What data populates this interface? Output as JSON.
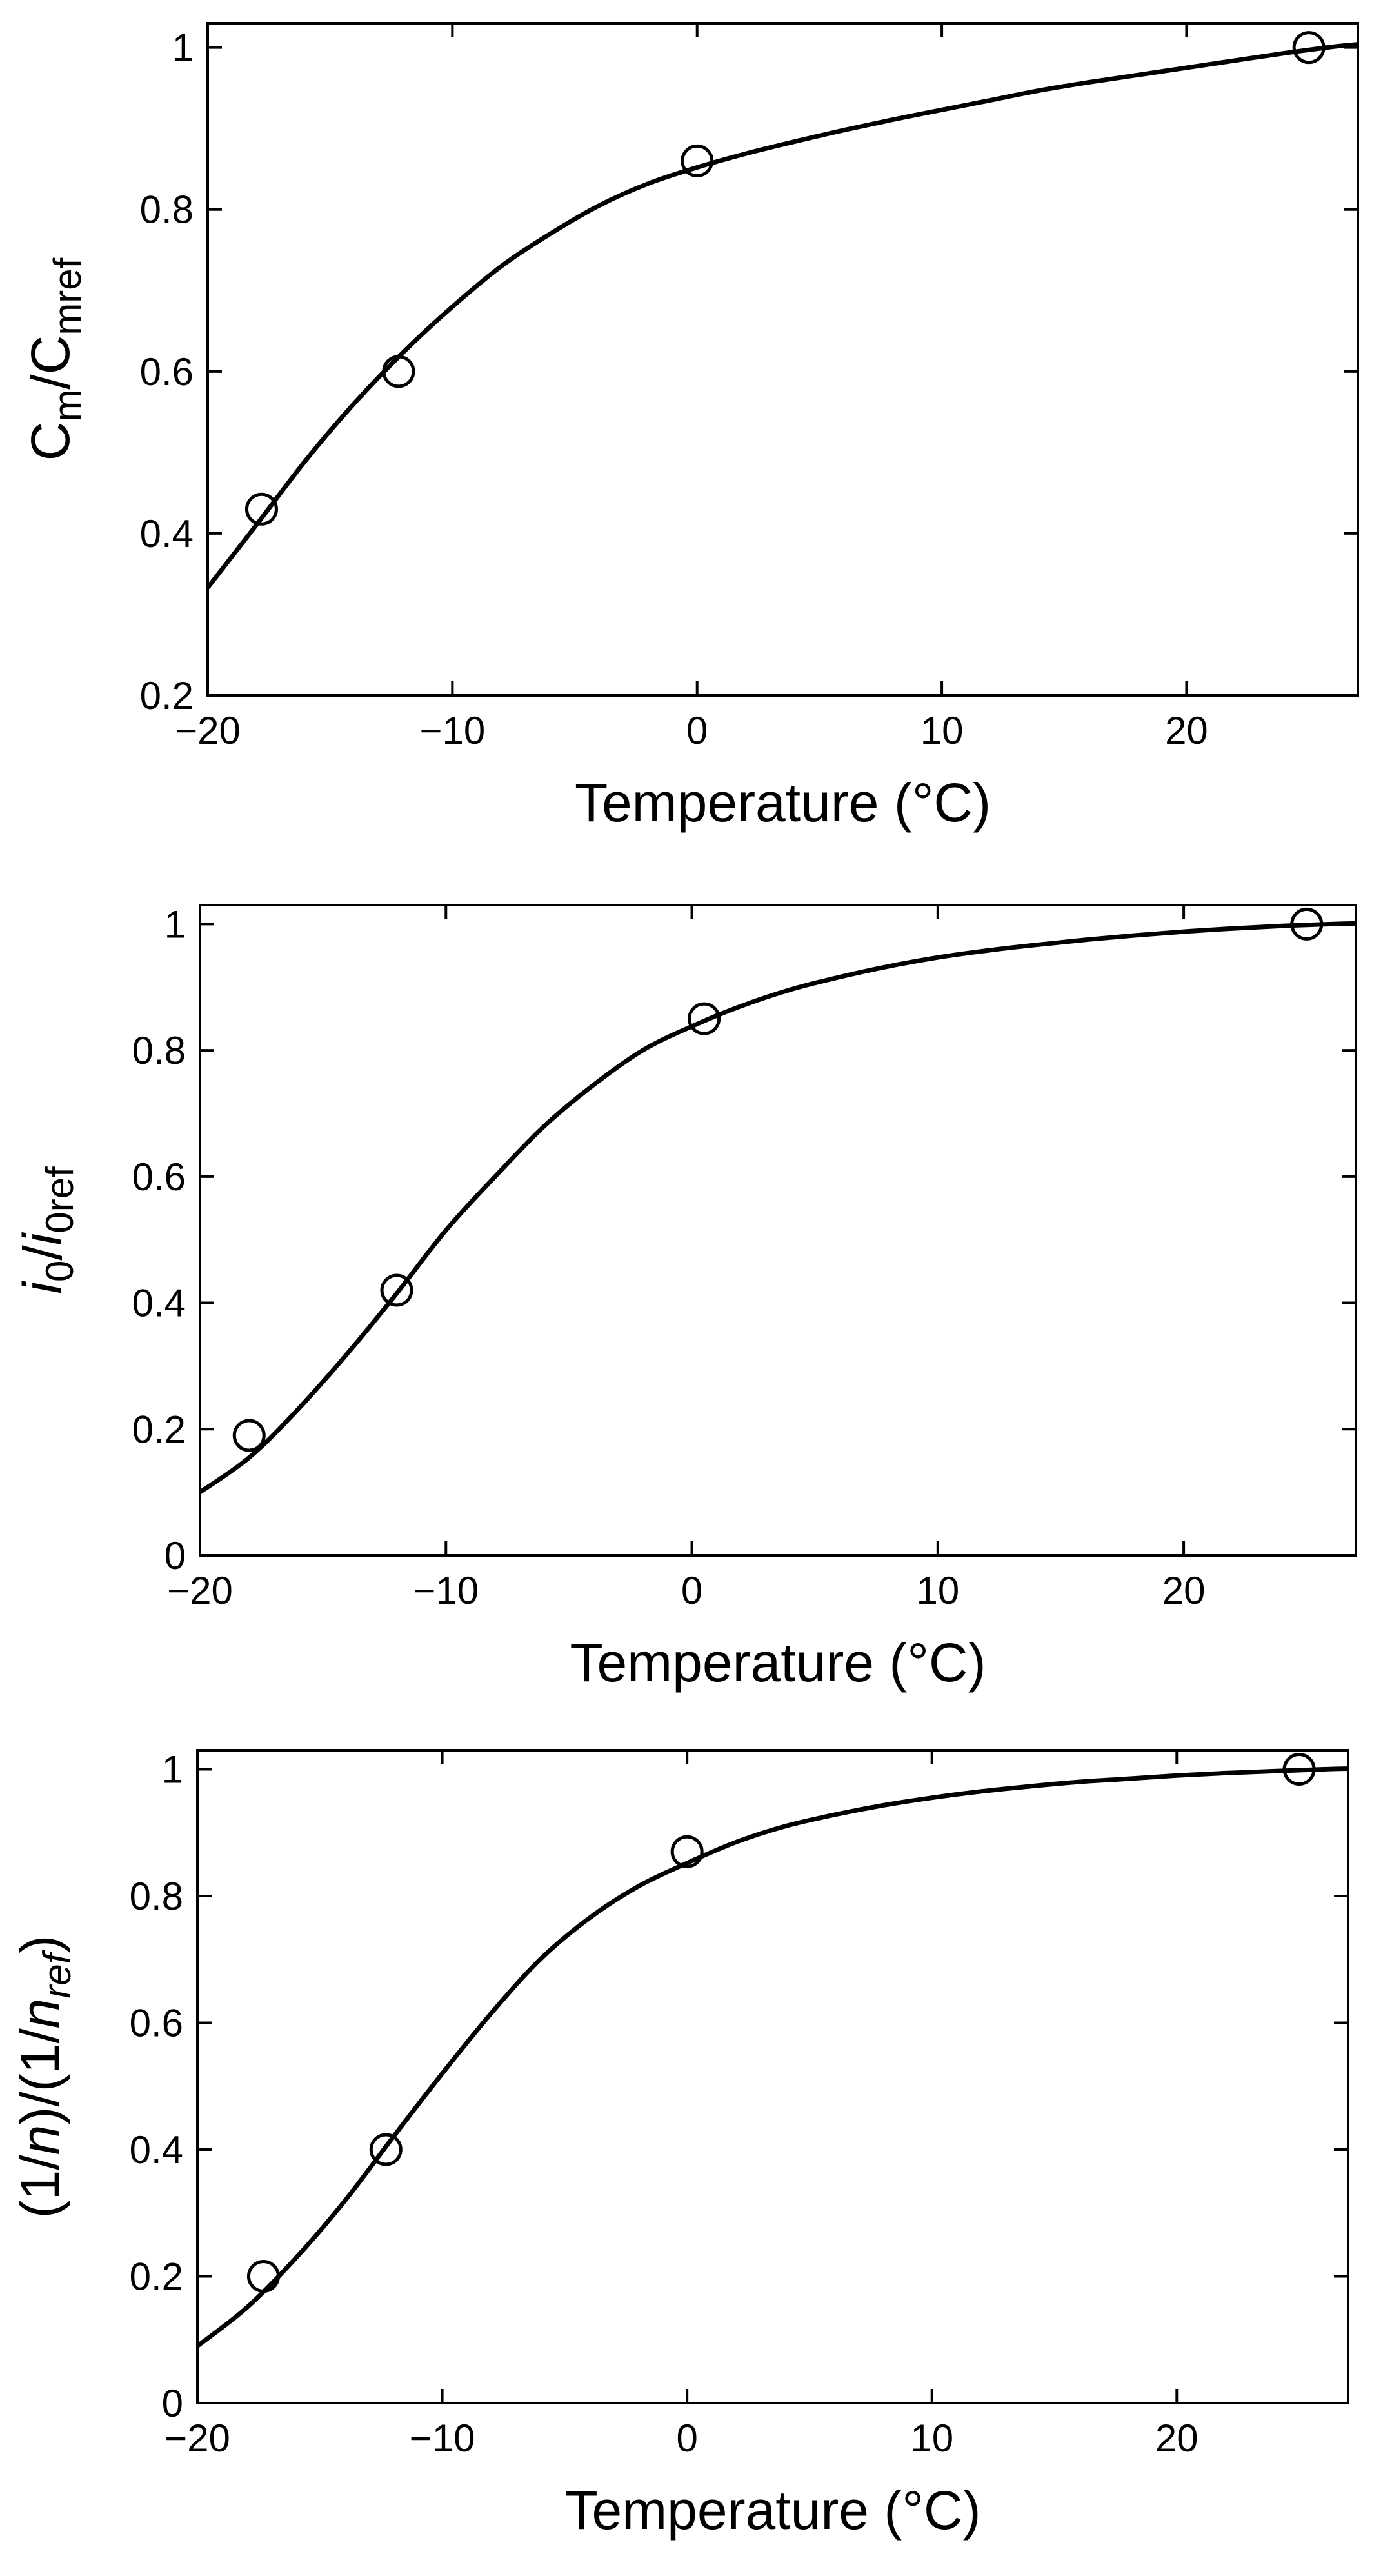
{
  "chart_data": [
    {
      "type": "scatter",
      "ylabel": {
        "parts": [
          [
            "C",
            "n"
          ],
          [
            "m",
            "s"
          ],
          [
            "/C",
            "n"
          ],
          [
            "mref",
            "s"
          ]
        ]
      },
      "xlabel": "Temperature (°C)",
      "xlim": [
        -20,
        27
      ],
      "ylim": [
        0.2,
        1.03
      ],
      "xticks": [
        -20,
        -10,
        0,
        10,
        20
      ],
      "xtick_labels": [
        "−20",
        "−10",
        "0",
        "10",
        "20"
      ],
      "yticks": [
        0.2,
        0.4,
        0.6,
        0.8,
        1
      ],
      "ytick_labels": [
        "0.2",
        "0.4",
        "0.6",
        "0.8",
        "1"
      ],
      "grid": false,
      "series": [
        {
          "kind": "markers",
          "marker": "open-circle",
          "x": [
            -17.8,
            -12.2,
            0,
            25
          ],
          "y": [
            0.43,
            0.6,
            0.86,
            1.0
          ]
        },
        {
          "kind": "line",
          "x": [
            -20,
            -18,
            -16,
            -14,
            -12,
            -10,
            -8,
            -6,
            -4,
            -2,
            0,
            2,
            4,
            6,
            8,
            10,
            12,
            14,
            16,
            18,
            20,
            22,
            24,
            26,
            27
          ],
          "y": [
            0.333,
            0.411,
            0.49,
            0.561,
            0.624,
            0.68,
            0.73,
            0.77,
            0.805,
            0.832,
            0.852,
            0.869,
            0.884,
            0.898,
            0.911,
            0.923,
            0.935,
            0.947,
            0.957,
            0.966,
            0.975,
            0.984,
            0.993,
            1.001,
            1.004
          ]
        }
      ]
    },
    {
      "type": "scatter",
      "ylabel": {
        "parts": [
          [
            "i",
            "i"
          ],
          [
            "0",
            "s"
          ],
          [
            "/",
            "n"
          ],
          [
            "i",
            "i"
          ],
          [
            "0ref",
            "s"
          ]
        ]
      },
      "xlabel": "Temperature (°C)",
      "xlim": [
        -20,
        27
      ],
      "ylim": [
        0,
        1.03
      ],
      "xticks": [
        -20,
        -10,
        0,
        10,
        20
      ],
      "xtick_labels": [
        "−20",
        "−10",
        "0",
        "10",
        "20"
      ],
      "yticks": [
        0,
        0.2,
        0.4,
        0.6,
        0.8,
        1
      ],
      "ytick_labels": [
        "0",
        "0.2",
        "0.4",
        "0.6",
        "0.8",
        "1"
      ],
      "grid": false,
      "series": [
        {
          "kind": "markers",
          "marker": "open-circle",
          "x": [
            -18,
            -12,
            0.5,
            25
          ],
          "y": [
            0.19,
            0.42,
            0.85,
            1.0
          ]
        },
        {
          "kind": "line",
          "x": [
            -20,
            -18,
            -16,
            -14,
            -12,
            -10,
            -8,
            -6,
            -4,
            -2,
            0,
            2,
            4,
            6,
            8,
            10,
            12,
            14,
            16,
            18,
            20,
            22,
            24,
            26,
            27
          ],
          "y": [
            0.1,
            0.155,
            0.232,
            0.32,
            0.415,
            0.515,
            0.6,
            0.68,
            0.745,
            0.8,
            0.838,
            0.87,
            0.896,
            0.916,
            0.933,
            0.947,
            0.958,
            0.967,
            0.975,
            0.982,
            0.988,
            0.993,
            0.997,
            1.0,
            1.001
          ]
        }
      ]
    },
    {
      "type": "scatter",
      "ylabel": {
        "parts": [
          [
            "(1/",
            "n"
          ],
          [
            "n",
            "i"
          ],
          [
            ")/(1/",
            "n"
          ],
          [
            "n",
            "i"
          ],
          [
            "ref",
            "si"
          ],
          [
            ")",
            "n"
          ]
        ]
      },
      "xlabel": "Temperature (°C)",
      "xlim": [
        -20,
        27
      ],
      "ylim": [
        0,
        1.03
      ],
      "xticks": [
        -20,
        -10,
        0,
        10,
        20
      ],
      "xtick_labels": [
        "−20",
        "−10",
        "0",
        "10",
        "20"
      ],
      "yticks": [
        0,
        0.2,
        0.4,
        0.6,
        0.8,
        1
      ],
      "ytick_labels": [
        "0",
        "0.2",
        "0.4",
        "0.6",
        "0.8",
        "1"
      ],
      "grid": false,
      "series": [
        {
          "kind": "markers",
          "marker": "open-circle",
          "x": [
            -17.3,
            -12.3,
            0,
            25
          ],
          "y": [
            0.2,
            0.4,
            0.87,
            1.0
          ]
        },
        {
          "kind": "line",
          "x": [
            -20,
            -18,
            -16,
            -14,
            -12,
            -10,
            -8,
            -6,
            -4,
            -2,
            0,
            2,
            4,
            6,
            8,
            10,
            12,
            14,
            16,
            18,
            20,
            22,
            24,
            26,
            27
          ],
          "y": [
            0.09,
            0.15,
            0.228,
            0.318,
            0.42,
            0.52,
            0.615,
            0.7,
            0.765,
            0.815,
            0.852,
            0.885,
            0.91,
            0.928,
            0.943,
            0.955,
            0.965,
            0.973,
            0.98,
            0.985,
            0.99,
            0.994,
            0.997,
            1.0,
            1.001
          ]
        }
      ]
    }
  ]
}
